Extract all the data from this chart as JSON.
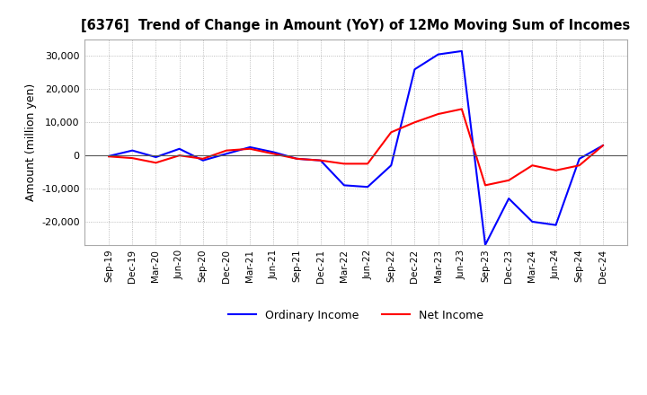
{
  "title": "[6376]  Trend of Change in Amount (YoY) of 12Mo Moving Sum of Incomes",
  "ylabel": "Amount (million yen)",
  "ylim": [
    -27000,
    35000
  ],
  "yticks": [
    -20000,
    -10000,
    0,
    10000,
    20000,
    30000
  ],
  "background_color": "#ffffff",
  "grid_color": "#aaaaaa",
  "ordinary_income_color": "#0000ff",
  "net_income_color": "#ff0000",
  "x_labels": [
    "Sep-19",
    "Dec-19",
    "Mar-20",
    "Jun-20",
    "Sep-20",
    "Dec-20",
    "Mar-21",
    "Jun-21",
    "Sep-21",
    "Dec-21",
    "Mar-22",
    "Jun-22",
    "Sep-22",
    "Dec-22",
    "Mar-23",
    "Jun-23",
    "Sep-23",
    "Dec-23",
    "Mar-24",
    "Jun-24",
    "Sep-24",
    "Dec-24"
  ],
  "ordinary_income": [
    -200,
    1500,
    -500,
    2000,
    -1500,
    500,
    2500,
    1000,
    -1000,
    -1500,
    -9000,
    -9500,
    -3000,
    26000,
    30500,
    31500,
    -27000,
    -13000,
    -20000,
    -21000,
    -1000,
    3000
  ],
  "net_income": [
    -300,
    -800,
    -2200,
    0,
    -1000,
    1500,
    2000,
    500,
    -1000,
    -1500,
    -2500,
    -2500,
    7000,
    10000,
    12500,
    14000,
    -9000,
    -7500,
    -3000,
    -4500,
    -3000,
    3000
  ]
}
